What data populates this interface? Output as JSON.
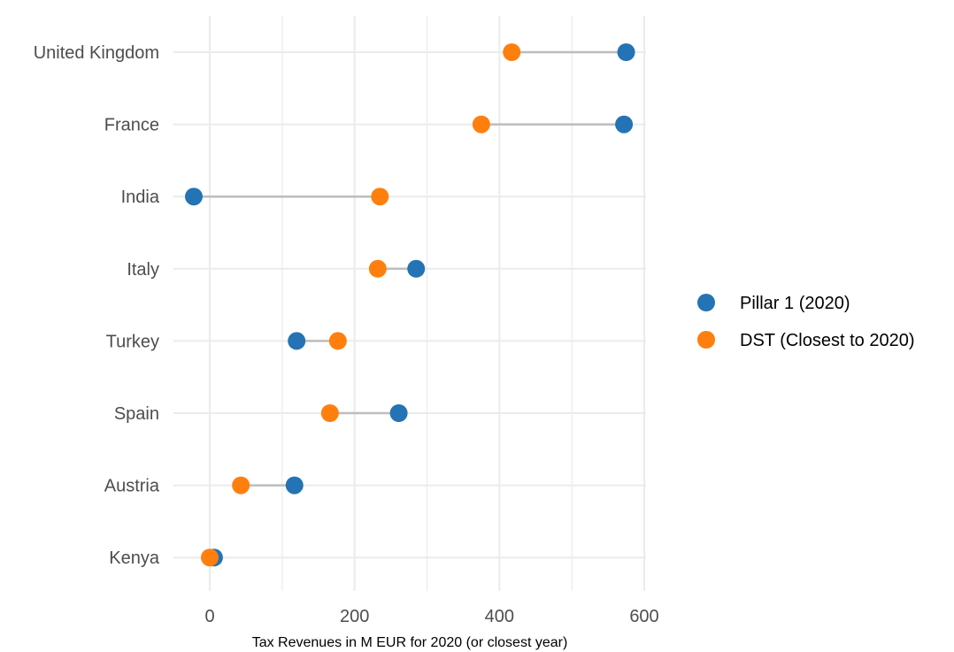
{
  "chart_data": {
    "type": "dumbbell",
    "title": "",
    "xlabel": "Tax Revenues in M EUR for 2020 (or closest year)",
    "ylabel": "",
    "xlim": [
      -25,
      600
    ],
    "x_ticks": [
      0,
      200,
      400,
      600
    ],
    "x_ticks_minor": [
      100,
      300,
      500
    ],
    "grid": true,
    "legend_position": "right",
    "categories": [
      "United Kingdom",
      "France",
      "India",
      "Italy",
      "Turkey",
      "Spain",
      "Austria",
      "Kenya"
    ],
    "series": [
      {
        "name": "Pillar 1 (2020)",
        "color": "#2473B4",
        "values": [
          575,
          572,
          -22,
          285,
          120,
          261,
          117,
          6
        ]
      },
      {
        "name": "DST (Closest to 2020)",
        "color": "#FF7F0E",
        "values": [
          417,
          375,
          235,
          232,
          177,
          166,
          43,
          0
        ]
      }
    ],
    "connector_color": "#bdbdbd"
  }
}
